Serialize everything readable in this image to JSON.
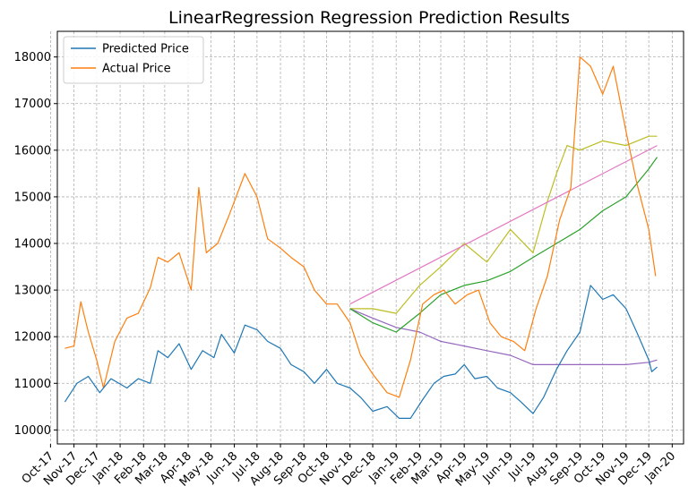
{
  "chart_data": {
    "type": "line",
    "title": "LinearRegression Regression Prediction Results",
    "xlabel": "",
    "ylabel": "",
    "xlim": [
      "2017-10-10",
      "2020-01-16"
    ],
    "ylim": [
      9700,
      18550
    ],
    "grid": true,
    "grid_style": "dashed",
    "legend_position": "top-left",
    "x_ticks": [
      "Oct-17",
      "Nov-17",
      "Dec-17",
      "Jan-18",
      "Feb-18",
      "Mar-18",
      "Apr-18",
      "May-18",
      "Jun-18",
      "Jul-18",
      "Aug-18",
      "Sep-18",
      "Oct-18",
      "Nov-18",
      "Dec-18",
      "Jan-19",
      "Feb-19",
      "Mar-19",
      "Apr-19",
      "May-19",
      "Jun-19",
      "Jul-19",
      "Aug-19",
      "Sep-19",
      "Oct-19",
      "Nov-19",
      "Dec-19",
      "Jan-20"
    ],
    "x_tick_dates": [
      "2017-10-01",
      "2017-11-01",
      "2017-12-01",
      "2018-01-01",
      "2018-02-01",
      "2018-03-01",
      "2018-04-01",
      "2018-05-01",
      "2018-06-01",
      "2018-07-01",
      "2018-08-01",
      "2018-09-01",
      "2018-10-01",
      "2018-11-01",
      "2018-12-01",
      "2019-01-01",
      "2019-02-01",
      "2019-03-01",
      "2019-04-01",
      "2019-05-01",
      "2019-06-01",
      "2019-07-01",
      "2019-08-01",
      "2019-09-01",
      "2019-10-01",
      "2019-11-01",
      "2019-12-01",
      "2020-01-01"
    ],
    "y_ticks": [
      10000,
      11000,
      12000,
      13000,
      14000,
      15000,
      16000,
      17000,
      18000
    ],
    "series": [
      {
        "name": "Predicted Price",
        "color": "#1f77b4",
        "in_legend": true,
        "points": [
          [
            "2017-10-20",
            10600
          ],
          [
            "2017-11-05",
            11000
          ],
          [
            "2017-11-20",
            11150
          ],
          [
            "2017-12-05",
            10800
          ],
          [
            "2017-12-20",
            11100
          ],
          [
            "2018-01-10",
            10900
          ],
          [
            "2018-01-25",
            11100
          ],
          [
            "2018-02-10",
            11000
          ],
          [
            "2018-02-20",
            11700
          ],
          [
            "2018-03-05",
            11550
          ],
          [
            "2018-03-20",
            11850
          ],
          [
            "2018-04-05",
            11300
          ],
          [
            "2018-04-20",
            11700
          ],
          [
            "2018-05-05",
            11550
          ],
          [
            "2018-05-15",
            12050
          ],
          [
            "2018-06-01",
            11650
          ],
          [
            "2018-06-15",
            12250
          ],
          [
            "2018-07-01",
            12150
          ],
          [
            "2018-07-15",
            11900
          ],
          [
            "2018-08-01",
            11750
          ],
          [
            "2018-08-15",
            11400
          ],
          [
            "2018-09-01",
            11250
          ],
          [
            "2018-09-15",
            11000
          ],
          [
            "2018-10-01",
            11300
          ],
          [
            "2018-10-15",
            11000
          ],
          [
            "2018-11-01",
            10900
          ],
          [
            "2018-11-15",
            10700
          ],
          [
            "2018-12-01",
            10400
          ],
          [
            "2018-12-20",
            10500
          ],
          [
            "2019-01-05",
            10250
          ],
          [
            "2019-01-20",
            10250
          ],
          [
            "2019-02-05",
            10650
          ],
          [
            "2019-02-20",
            11000
          ],
          [
            "2019-03-05",
            11150
          ],
          [
            "2019-03-20",
            11200
          ],
          [
            "2019-04-01",
            11400
          ],
          [
            "2019-04-15",
            11100
          ],
          [
            "2019-05-01",
            11150
          ],
          [
            "2019-05-15",
            10900
          ],
          [
            "2019-06-01",
            10800
          ],
          [
            "2019-06-15",
            10600
          ],
          [
            "2019-07-01",
            10350
          ],
          [
            "2019-07-15",
            10700
          ],
          [
            "2019-08-01",
            11300
          ],
          [
            "2019-08-15",
            11700
          ],
          [
            "2019-09-01",
            12100
          ],
          [
            "2019-09-15",
            13100
          ],
          [
            "2019-10-01",
            12800
          ],
          [
            "2019-10-15",
            12900
          ],
          [
            "2019-11-01",
            12600
          ],
          [
            "2019-11-15",
            12100
          ],
          [
            "2019-12-01",
            11500
          ],
          [
            "2019-12-05",
            11250
          ],
          [
            "2019-12-12",
            11350
          ]
        ]
      },
      {
        "name": "Actual Price",
        "color": "#ff7f0e",
        "in_legend": true,
        "points": [
          [
            "2017-10-20",
            11750
          ],
          [
            "2017-11-01",
            11800
          ],
          [
            "2017-11-10",
            12750
          ],
          [
            "2017-11-20",
            12100
          ],
          [
            "2017-12-01",
            11500
          ],
          [
            "2017-12-10",
            10900
          ],
          [
            "2017-12-25",
            11900
          ],
          [
            "2018-01-10",
            12400
          ],
          [
            "2018-01-25",
            12500
          ],
          [
            "2018-02-10",
            13050
          ],
          [
            "2018-02-20",
            13700
          ],
          [
            "2018-03-05",
            13600
          ],
          [
            "2018-03-20",
            13800
          ],
          [
            "2018-04-05",
            13000
          ],
          [
            "2018-04-15",
            15200
          ],
          [
            "2018-04-25",
            13800
          ],
          [
            "2018-05-10",
            14000
          ],
          [
            "2018-05-25",
            14600
          ],
          [
            "2018-06-15",
            15500
          ],
          [
            "2018-07-01",
            15000
          ],
          [
            "2018-07-15",
            14100
          ],
          [
            "2018-08-01",
            13900
          ],
          [
            "2018-08-15",
            13700
          ],
          [
            "2018-09-01",
            13500
          ],
          [
            "2018-09-15",
            13000
          ],
          [
            "2018-10-01",
            12700
          ],
          [
            "2018-10-15",
            12700
          ],
          [
            "2018-11-01",
            12300
          ],
          [
            "2018-11-15",
            11600
          ],
          [
            "2018-12-01",
            11200
          ],
          [
            "2018-12-20",
            10800
          ],
          [
            "2019-01-05",
            10700
          ],
          [
            "2019-01-20",
            11500
          ],
          [
            "2019-02-05",
            12700
          ],
          [
            "2019-02-20",
            12900
          ],
          [
            "2019-03-05",
            13000
          ],
          [
            "2019-03-20",
            12700
          ],
          [
            "2019-04-05",
            12900
          ],
          [
            "2019-04-20",
            13000
          ],
          [
            "2019-05-05",
            12300
          ],
          [
            "2019-05-20",
            12000
          ],
          [
            "2019-06-05",
            11900
          ],
          [
            "2019-06-20",
            11700
          ],
          [
            "2019-07-05",
            12600
          ],
          [
            "2019-07-20",
            13300
          ],
          [
            "2019-08-05",
            14500
          ],
          [
            "2019-08-20",
            15200
          ],
          [
            "2019-09-01",
            18000
          ],
          [
            "2019-09-15",
            17800
          ],
          [
            "2019-10-01",
            17200
          ],
          [
            "2019-10-15",
            17800
          ],
          [
            "2019-11-01",
            16400
          ],
          [
            "2019-11-15",
            15300
          ],
          [
            "2019-12-01",
            14300
          ],
          [
            "2019-12-10",
            13300
          ]
        ]
      },
      {
        "name": "",
        "color": "#2ca02c",
        "in_legend": false,
        "points": [
          [
            "2018-11-01",
            12600
          ],
          [
            "2018-12-01",
            12300
          ],
          [
            "2019-01-01",
            12100
          ],
          [
            "2019-02-01",
            12500
          ],
          [
            "2019-03-01",
            12900
          ],
          [
            "2019-04-01",
            13100
          ],
          [
            "2019-05-01",
            13200
          ],
          [
            "2019-06-01",
            13400
          ],
          [
            "2019-07-01",
            13700
          ],
          [
            "2019-08-01",
            14000
          ],
          [
            "2019-09-01",
            14300
          ],
          [
            "2019-10-01",
            14700
          ],
          [
            "2019-11-01",
            15000
          ],
          [
            "2019-12-01",
            15600
          ],
          [
            "2019-12-12",
            15850
          ]
        ]
      },
      {
        "name": "",
        "color": "#9467bd",
        "in_legend": false,
        "points": [
          [
            "2018-11-01",
            12600
          ],
          [
            "2018-12-01",
            12400
          ],
          [
            "2019-01-01",
            12200
          ],
          [
            "2019-02-01",
            12100
          ],
          [
            "2019-03-01",
            11900
          ],
          [
            "2019-04-01",
            11800
          ],
          [
            "2019-05-01",
            11700
          ],
          [
            "2019-06-01",
            11600
          ],
          [
            "2019-07-01",
            11400
          ],
          [
            "2019-08-01",
            11400
          ],
          [
            "2019-09-01",
            11400
          ],
          [
            "2019-10-01",
            11400
          ],
          [
            "2019-11-01",
            11400
          ],
          [
            "2019-12-01",
            11450
          ],
          [
            "2019-12-12",
            11500
          ]
        ]
      },
      {
        "name": "",
        "color": "#e377c2",
        "in_legend": false,
        "points": [
          [
            "2018-11-01",
            12700
          ],
          [
            "2019-12-12",
            16100
          ]
        ]
      },
      {
        "name": "",
        "color": "#bcbd22",
        "in_legend": false,
        "points": [
          [
            "2018-11-01",
            12600
          ],
          [
            "2018-12-01",
            12600
          ],
          [
            "2019-01-01",
            12500
          ],
          [
            "2019-02-01",
            13100
          ],
          [
            "2019-03-01",
            13500
          ],
          [
            "2019-04-01",
            14000
          ],
          [
            "2019-05-01",
            13600
          ],
          [
            "2019-06-01",
            14300
          ],
          [
            "2019-07-01",
            13800
          ],
          [
            "2019-07-20",
            14900
          ],
          [
            "2019-08-01",
            15500
          ],
          [
            "2019-08-15",
            16100
          ],
          [
            "2019-09-01",
            16000
          ],
          [
            "2019-10-01",
            16200
          ],
          [
            "2019-11-01",
            16100
          ],
          [
            "2019-12-01",
            16300
          ],
          [
            "2019-12-12",
            16300
          ]
        ]
      }
    ]
  }
}
